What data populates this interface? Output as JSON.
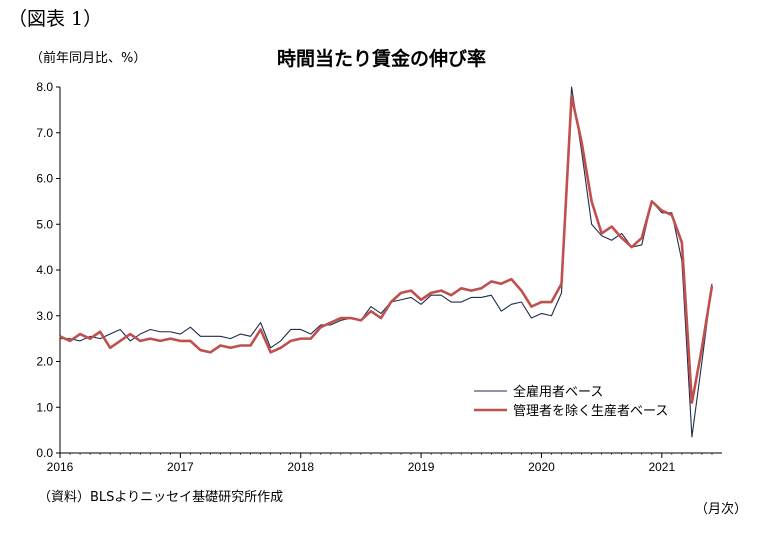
{
  "figure_label": "（図表 1）",
  "unit_label": "（前年同月比、%）",
  "source_note": "（資料）BLSよりニッセイ基礎研究所作成",
  "x_unit_label": "（月次）",
  "chart_data": {
    "type": "line",
    "title": "時間当たり賃金の伸び率",
    "xlabel": "",
    "ylabel": "",
    "ylim": [
      0,
      8
    ],
    "yticks": [
      "0.0",
      "1.0",
      "2.0",
      "3.0",
      "4.0",
      "5.0",
      "6.0",
      "7.0",
      "8.0"
    ],
    "xticks": [
      "2016",
      "2017",
      "2018",
      "2019",
      "2020",
      "2021"
    ],
    "grid": false,
    "legend": "bottom-right",
    "x_start": "2016-01",
    "x_end": "2021-06",
    "series": [
      {
        "name": "全雇用者ベース",
        "color": "#1f2d4d",
        "values": [
          2.5,
          2.5,
          2.45,
          2.55,
          2.5,
          2.6,
          2.7,
          2.45,
          2.6,
          2.7,
          2.65,
          2.65,
          2.6,
          2.75,
          2.55,
          2.55,
          2.55,
          2.5,
          2.6,
          2.55,
          2.85,
          2.3,
          2.45,
          2.7,
          2.7,
          2.6,
          2.8,
          2.8,
          2.9,
          2.95,
          2.9,
          3.2,
          3.05,
          3.3,
          3.35,
          3.4,
          3.25,
          3.45,
          3.45,
          3.3,
          3.3,
          3.4,
          3.4,
          3.45,
          3.1,
          3.25,
          3.3,
          2.95,
          3.05,
          3.0,
          3.5,
          8.0,
          6.6,
          5.0,
          4.75,
          4.65,
          4.8,
          4.5,
          4.55,
          5.5,
          5.25,
          5.25,
          4.2,
          0.35,
          2.0,
          3.7
        ]
      },
      {
        "name": "管理者を除く生産者ベース",
        "color": "#c0504d",
        "values": [
          2.55,
          2.45,
          2.6,
          2.5,
          2.65,
          2.3,
          2.45,
          2.6,
          2.45,
          2.5,
          2.45,
          2.5,
          2.45,
          2.45,
          2.25,
          2.2,
          2.35,
          2.3,
          2.35,
          2.35,
          2.7,
          2.2,
          2.3,
          2.45,
          2.5,
          2.5,
          2.75,
          2.85,
          2.95,
          2.95,
          2.9,
          3.1,
          2.95,
          3.3,
          3.5,
          3.55,
          3.35,
          3.5,
          3.55,
          3.45,
          3.6,
          3.55,
          3.6,
          3.75,
          3.7,
          3.8,
          3.55,
          3.2,
          3.3,
          3.3,
          3.7,
          7.8,
          6.8,
          5.5,
          4.8,
          4.95,
          4.7,
          4.5,
          4.7,
          5.5,
          5.3,
          5.2,
          4.6,
          1.1,
          2.3,
          3.65
        ]
      }
    ]
  }
}
